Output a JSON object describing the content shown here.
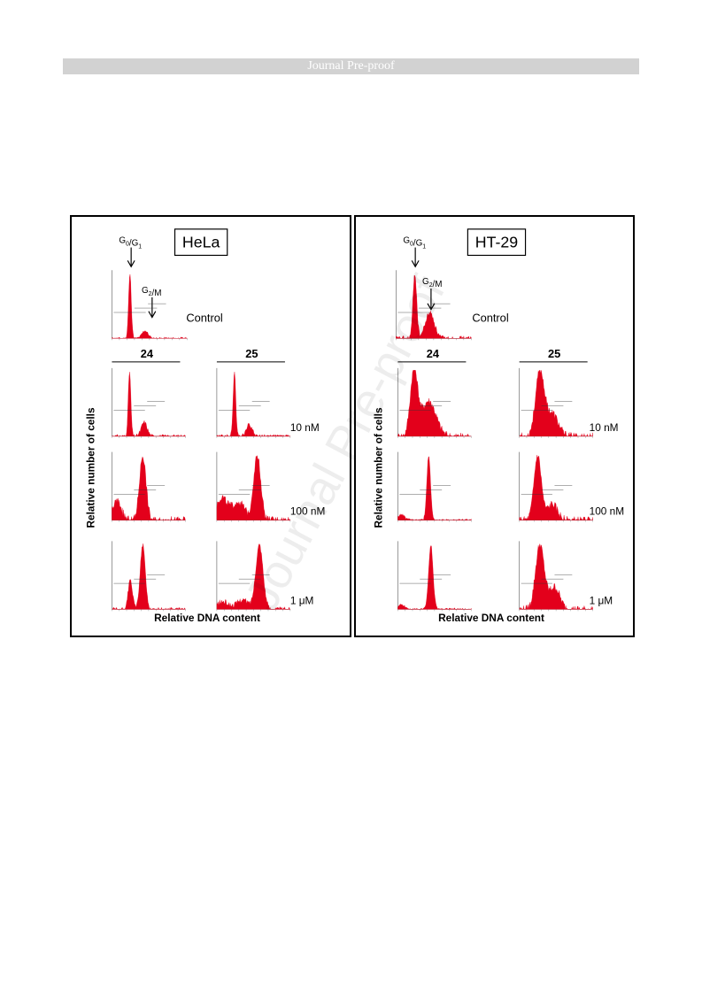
{
  "header": {
    "banner": "Journal Pre-proof"
  },
  "watermark": "Journal Pre-proof",
  "figure": {
    "colors": {
      "histogram_fill": "#e3001b",
      "frame": "#000000"
    },
    "panels": [
      {
        "cell_line": "HeLa",
        "markers": {
          "g0g1": "G0/G1",
          "g2m": "G2/M"
        },
        "control_label": "Control",
        "columns": [
          "24",
          "25"
        ],
        "rows": [
          "10 nM",
          "100 nM",
          "1 μM"
        ],
        "ylabel": "Relative number of cells",
        "xlabel": "Relative DNA content"
      },
      {
        "cell_line": "HT-29",
        "markers": {
          "g0g1": "G0/G1",
          "g2m": "G2/M"
        },
        "control_label": "Control",
        "columns": [
          "24",
          "25"
        ],
        "rows": [
          "10 nM",
          "100 nM",
          "1 μM"
        ],
        "ylabel": "Relative number of cells",
        "xlabel": "Relative DNA content"
      }
    ]
  },
  "chart_data": [
    {
      "type": "area",
      "title": "HeLa",
      "xlabel": "Relative DNA content",
      "ylabel": "Relative number of cells",
      "histograms": [
        {
          "name": "Control",
          "peaks": [
            [
              0.24,
              1.0,
              0.018
            ],
            [
              0.44,
              0.12,
              0.04
            ]
          ],
          "noise": 0.02
        },
        {
          "name": "24 10 nM",
          "peaks": [
            [
              0.24,
              1.0,
              0.018
            ],
            [
              0.44,
              0.22,
              0.04
            ]
          ],
          "noise": 0.03
        },
        {
          "name": "25 10 nM",
          "peaks": [
            [
              0.24,
              1.0,
              0.018
            ],
            [
              0.44,
              0.18,
              0.04
            ]
          ],
          "noise": 0.03
        },
        {
          "name": "24 100 nM",
          "peaks": [
            [
              0.07,
              0.3,
              0.06
            ],
            [
              0.42,
              1.0,
              0.045
            ]
          ],
          "noise": 0.06
        },
        {
          "name": "25 100 nM",
          "peaks": [
            [
              0.07,
              0.35,
              0.08
            ],
            [
              0.3,
              0.28,
              0.08
            ],
            [
              0.55,
              1.0,
              0.05
            ]
          ],
          "noise": 0.06
        },
        {
          "name": "24 1 μM",
          "peaks": [
            [
              0.25,
              0.45,
              0.03
            ],
            [
              0.42,
              1.0,
              0.035
            ]
          ],
          "noise": 0.03
        },
        {
          "name": "25 1 μM",
          "peaks": [
            [
              0.08,
              0.12,
              0.08
            ],
            [
              0.35,
              0.15,
              0.08
            ],
            [
              0.58,
              1.0,
              0.05
            ]
          ],
          "noise": 0.04
        }
      ]
    },
    {
      "type": "area",
      "title": "HT-29",
      "xlabel": "Relative DNA content",
      "ylabel": "Relative number of cells",
      "histograms": [
        {
          "name": "Control",
          "peaks": [
            [
              0.25,
              1.0,
              0.025
            ],
            [
              0.45,
              0.4,
              0.06
            ]
          ],
          "noise": 0.04
        },
        {
          "name": "24 10 nM",
          "peaks": [
            [
              0.22,
              1.0,
              0.05
            ],
            [
              0.42,
              0.55,
              0.1
            ]
          ],
          "noise": 0.06
        },
        {
          "name": "25 10 nM",
          "peaks": [
            [
              0.28,
              1.0,
              0.06
            ],
            [
              0.45,
              0.35,
              0.08
            ]
          ],
          "noise": 0.06
        },
        {
          "name": "24 100 nM",
          "peaks": [
            [
              0.05,
              0.08,
              0.05
            ],
            [
              0.42,
              1.0,
              0.025
            ]
          ],
          "noise": 0.02
        },
        {
          "name": "25 100 nM",
          "peaks": [
            [
              0.25,
              1.0,
              0.05
            ],
            [
              0.45,
              0.25,
              0.07
            ]
          ],
          "noise": 0.06
        },
        {
          "name": "24 1 μM",
          "peaks": [
            [
              0.05,
              0.07,
              0.05
            ],
            [
              0.45,
              1.0,
              0.03
            ]
          ],
          "noise": 0.02
        },
        {
          "name": "25 1 μM",
          "peaks": [
            [
              0.28,
              1.0,
              0.06
            ],
            [
              0.48,
              0.35,
              0.07
            ]
          ],
          "noise": 0.06
        }
      ]
    }
  ]
}
